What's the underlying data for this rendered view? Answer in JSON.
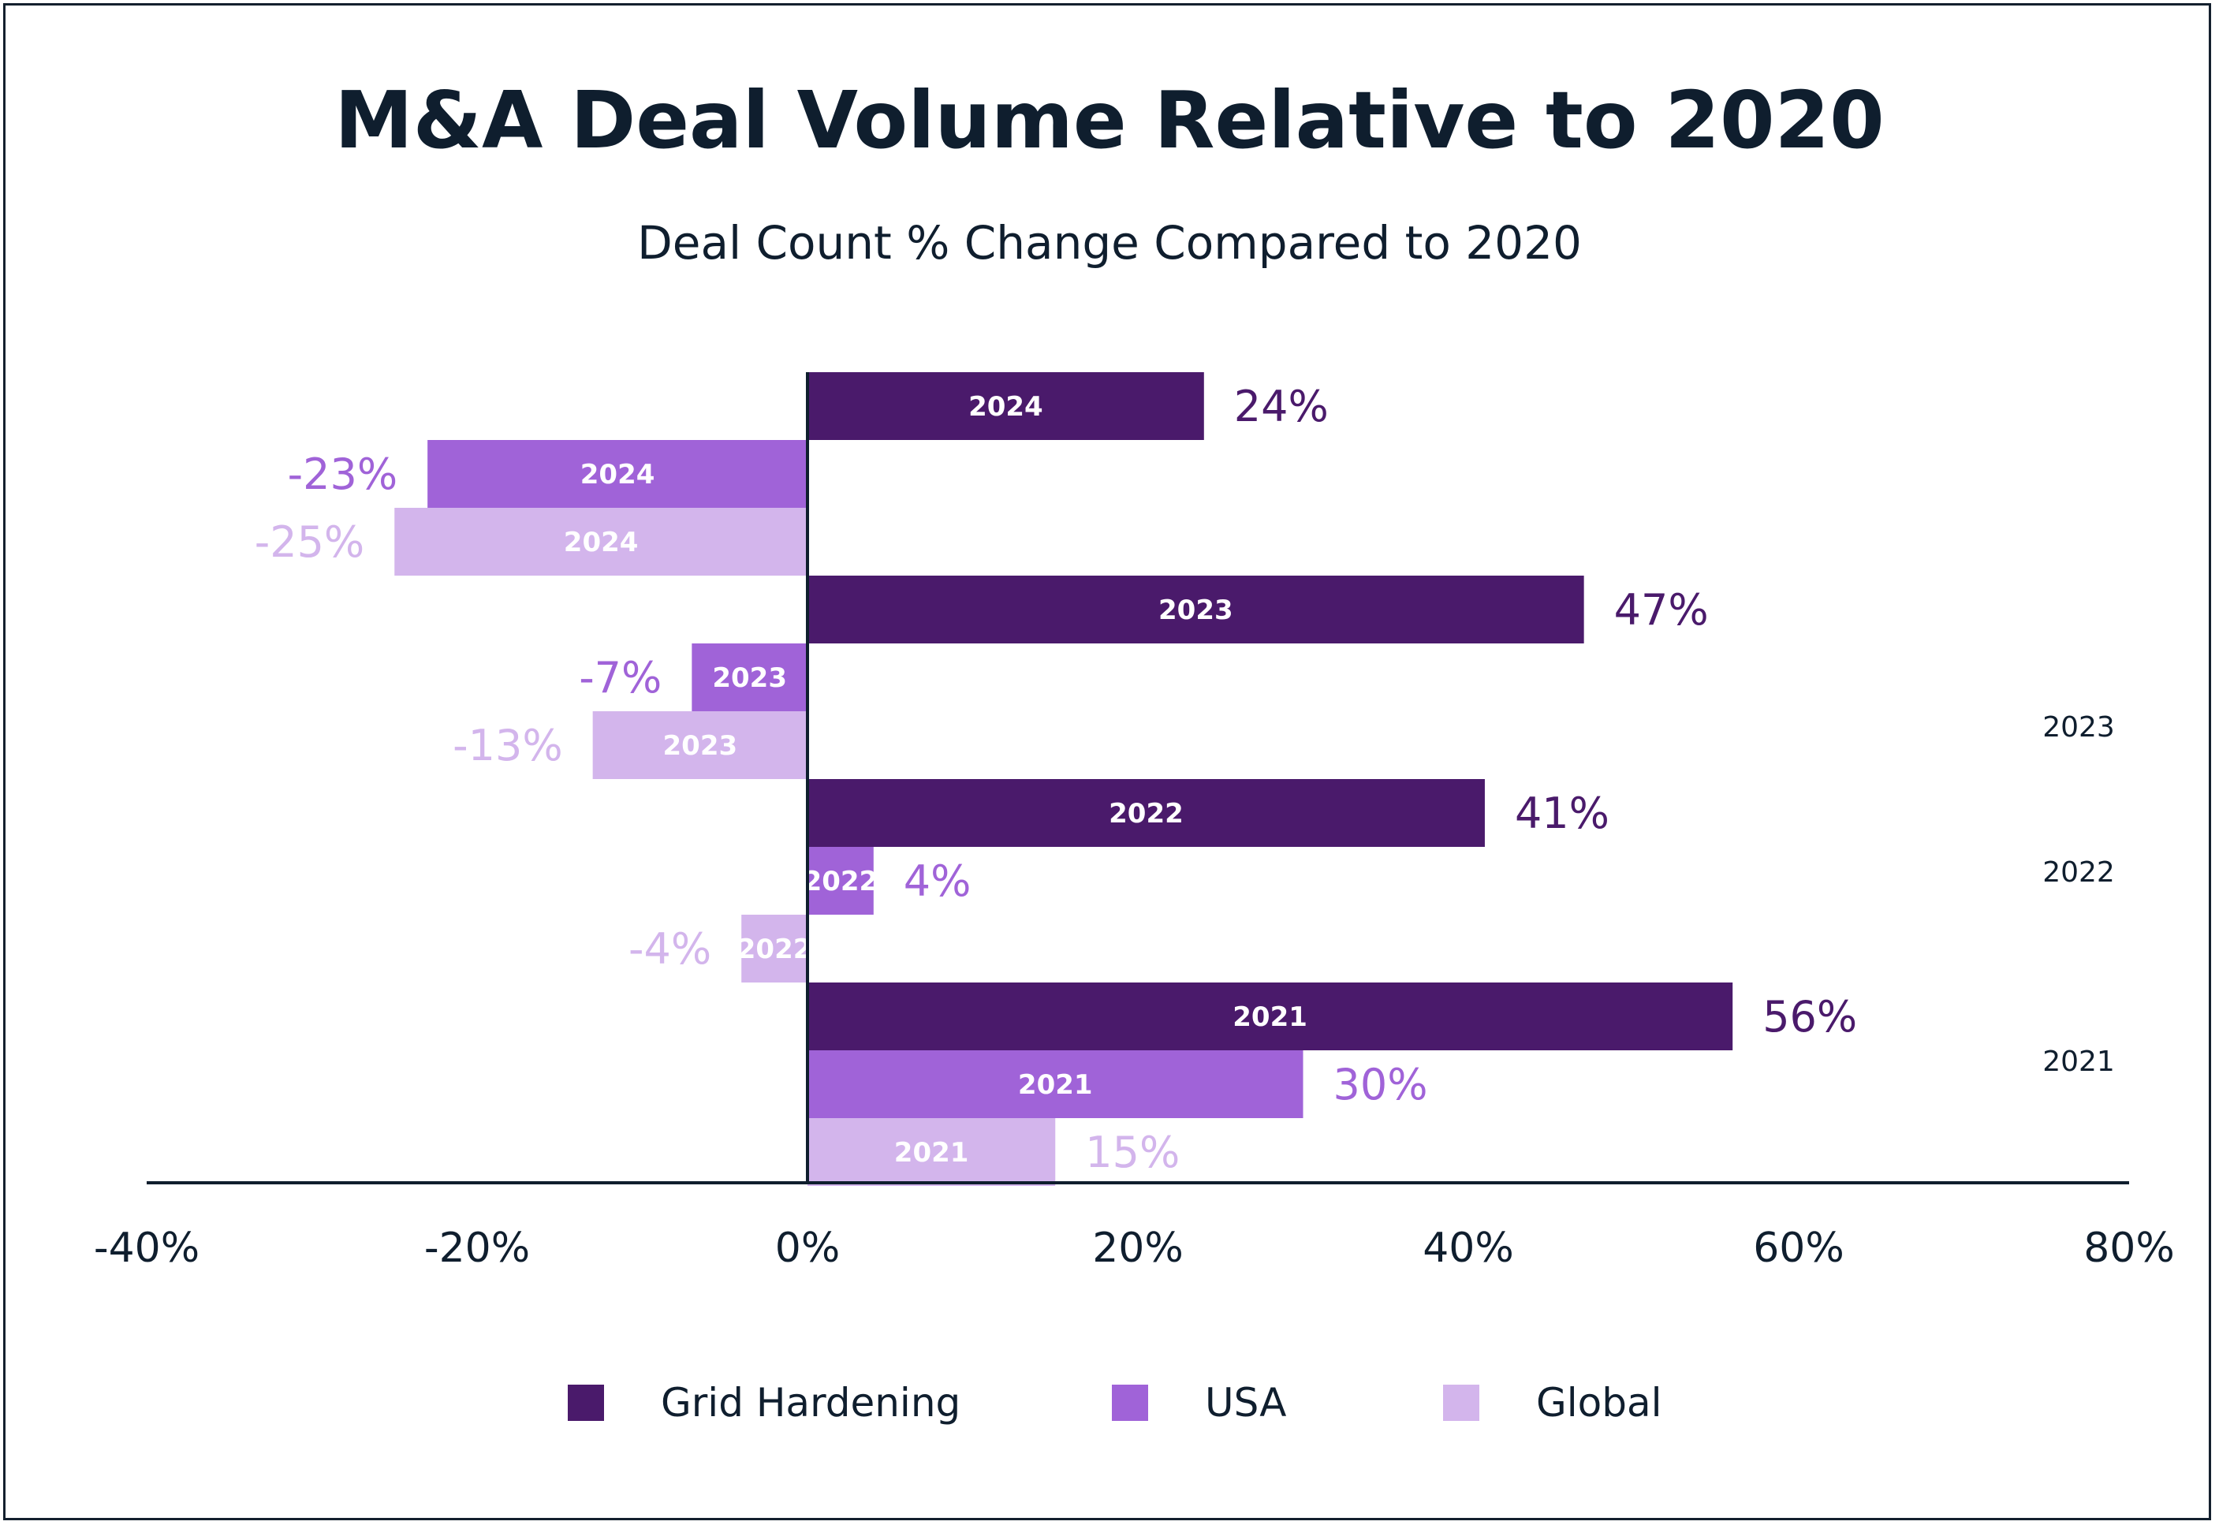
{
  "chart_data": {
    "type": "bar",
    "orientation": "horizontal",
    "title": "M&A Deal Volume Relative to 2020",
    "subtitle": "Deal Count % Change Compared to 2020",
    "xlim": [
      -40,
      80
    ],
    "x_ticks": [
      "-40%",
      "-20%",
      "0%",
      "20%",
      "40%",
      "60%",
      "80%"
    ],
    "x_tick_values": [
      -40,
      -20,
      0,
      20,
      40,
      60,
      80
    ],
    "grid": false,
    "legend_position": "bottom",
    "categories": [
      "2024",
      "2023",
      "2022",
      "2021"
    ],
    "series": [
      {
        "name": "Grid Hardening",
        "color": "#4a1a6b",
        "label_color": "#4a1a6b",
        "values": [
          24,
          47,
          41,
          56
        ],
        "value_labels": [
          "24%",
          "47%",
          "41%",
          "56%"
        ]
      },
      {
        "name": "USA",
        "color": "#a063d8",
        "label_color": "#a063d8",
        "values": [
          -23,
          -7,
          4,
          30
        ],
        "value_labels": [
          "-23%",
          "-7%",
          "4%",
          "30%"
        ]
      },
      {
        "name": "Global",
        "color": "#d3b5ec",
        "label_color": "#d3b5ec",
        "values": [
          -25,
          -13,
          -4,
          15
        ],
        "value_labels": [
          "-25%",
          "-13%",
          "-4%",
          "15%"
        ]
      }
    ],
    "extra_labels": [
      "2023",
      "2022",
      "2021"
    ]
  }
}
